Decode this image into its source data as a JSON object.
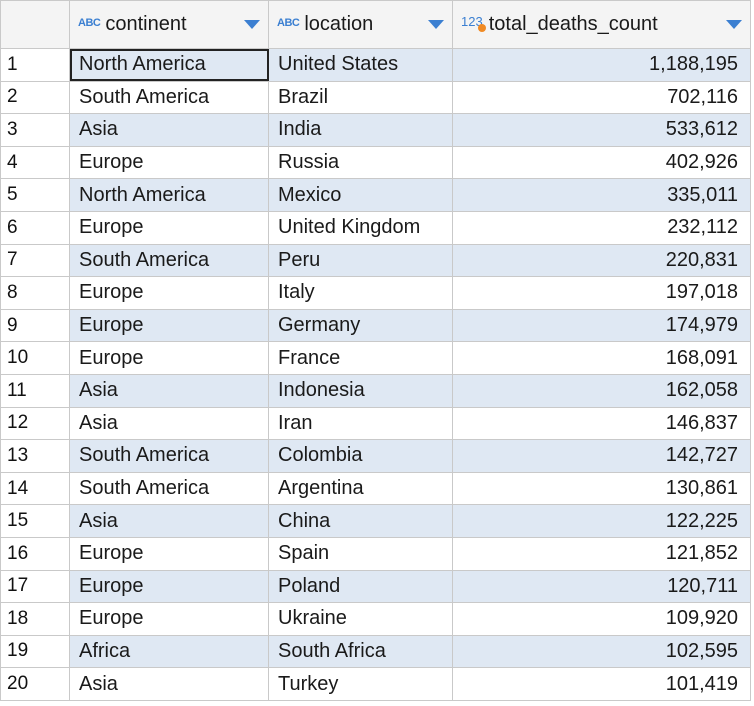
{
  "columns": [
    {
      "label": "continent",
      "type_icon": "ABC"
    },
    {
      "label": "location",
      "type_icon": "ABC"
    },
    {
      "label": "total_deaths_count",
      "type_icon": "123"
    }
  ],
  "rows": [
    {
      "num": "1",
      "continent": "North America",
      "location": "United States",
      "total": "1,188,195"
    },
    {
      "num": "2",
      "continent": "South America",
      "location": "Brazil",
      "total": "702,116"
    },
    {
      "num": "3",
      "continent": "Asia",
      "location": "India",
      "total": "533,612"
    },
    {
      "num": "4",
      "continent": "Europe",
      "location": "Russia",
      "total": "402,926"
    },
    {
      "num": "5",
      "continent": "North America",
      "location": "Mexico",
      "total": "335,011"
    },
    {
      "num": "6",
      "continent": "Europe",
      "location": "United Kingdom",
      "total": "232,112"
    },
    {
      "num": "7",
      "continent": "South America",
      "location": "Peru",
      "total": "220,831"
    },
    {
      "num": "8",
      "continent": "Europe",
      "location": "Italy",
      "total": "197,018"
    },
    {
      "num": "9",
      "continent": "Europe",
      "location": "Germany",
      "total": "174,979"
    },
    {
      "num": "10",
      "continent": "Europe",
      "location": "France",
      "total": "168,091"
    },
    {
      "num": "11",
      "continent": "Asia",
      "location": "Indonesia",
      "total": "162,058"
    },
    {
      "num": "12",
      "continent": "Asia",
      "location": "Iran",
      "total": "146,837"
    },
    {
      "num": "13",
      "continent": "South America",
      "location": "Colombia",
      "total": "142,727"
    },
    {
      "num": "14",
      "continent": "South America",
      "location": "Argentina",
      "total": "130,861"
    },
    {
      "num": "15",
      "continent": "Asia",
      "location": "China",
      "total": "122,225"
    },
    {
      "num": "16",
      "continent": "Europe",
      "location": "Spain",
      "total": "121,852"
    },
    {
      "num": "17",
      "continent": "Europe",
      "location": "Poland",
      "total": "120,711"
    },
    {
      "num": "18",
      "continent": "Europe",
      "location": "Ukraine",
      "total": "109,920"
    },
    {
      "num": "19",
      "continent": "Africa",
      "location": "South Africa",
      "total": "102,595"
    },
    {
      "num": "20",
      "continent": "Asia",
      "location": "Turkey",
      "total": "101,419"
    }
  ],
  "colors": {
    "header_bg": "#f4f4f4",
    "stripe": "#dfe8f3",
    "icon_blue": "#3b7fd1",
    "icon_orange": "#f08a24"
  }
}
